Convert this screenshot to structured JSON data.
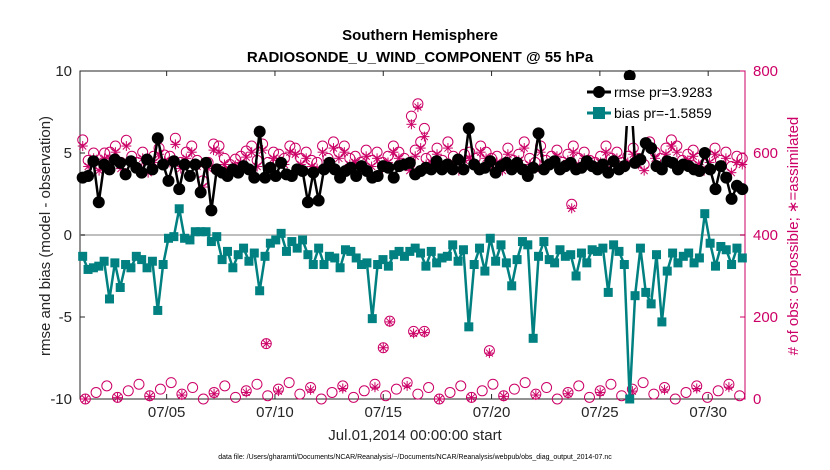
{
  "chart_data": {
    "type": "line",
    "title": "Southern Hemisphere",
    "subtitle": "RADIOSONDE_U_WIND_COMPONENT @ 55 hPa",
    "xlabel": "Jul.01,2014 00:00:00 start",
    "ylabel": "rmse and bias (model - observation)",
    "y2label": "# of obs: o=possible; ∗=assimilated",
    "xlim": [
      1,
      31.7
    ],
    "ylim": [
      -10,
      10
    ],
    "y2lim": [
      0,
      800
    ],
    "x_ticks": [
      5,
      10,
      15,
      20,
      25,
      30
    ],
    "x_tick_labels": [
      "07/05",
      "07/10",
      "07/15",
      "07/20",
      "07/25",
      "07/30"
    ],
    "y_ticks": [
      -10,
      -5,
      0,
      5,
      10
    ],
    "y_tick_labels": [
      "-10",
      "-5",
      "0",
      "5",
      "10"
    ],
    "y2_ticks": [
      0,
      200,
      400,
      600,
      800
    ],
    "y2_tick_labels": [
      "0",
      "200",
      "400",
      "600",
      "800"
    ],
    "zero_line": 0,
    "colors": {
      "rmse": "#000000",
      "bias": "#008080",
      "obs": "#cc0066",
      "zero": "#bfbfbf"
    },
    "legend_position": "top-right",
    "series": [
      {
        "name": "rmse pr=3.9283",
        "axis": "left",
        "values": [
          3.5,
          3.6,
          4.5,
          2.0,
          4.3,
          4.0,
          4.6,
          4.4,
          3.7,
          4.5,
          4.1,
          3.8,
          4.6,
          4.0,
          5.9,
          4.3,
          3.3,
          4.5,
          2.8,
          4.3,
          3.6,
          4.3,
          2.6,
          4.4,
          1.5,
          4.0,
          3.8,
          3.6,
          4.0,
          3.8,
          4.2,
          4.0,
          3.5,
          6.3,
          3.5,
          4.1,
          3.6,
          4.4,
          3.7,
          3.6,
          4.0,
          3.9,
          2.0,
          3.8,
          2.1,
          4.0,
          4.4,
          4.0,
          3.5,
          3.9,
          4.1,
          3.6,
          4.2,
          3.9,
          3.5,
          3.6,
          4.2,
          4.1,
          3.5,
          4.2,
          4.3,
          4.4,
          3.7,
          3.9,
          4.1,
          4.0,
          4.5,
          4.0,
          4.3,
          4.0,
          4.6,
          4.0,
          6.5,
          4.3,
          4.0,
          4.1,
          4.5,
          3.8,
          4.2,
          4.4,
          4.0,
          4.4,
          4.0,
          3.6,
          4.1,
          6.2,
          4.0,
          4.3,
          4.5,
          4.0,
          4.2,
          4.4,
          4.0,
          4.1,
          4.5,
          4.2,
          4.0,
          4.3,
          3.8,
          4.5,
          4.0,
          4.2,
          9.7,
          4.4,
          4.6,
          5.6,
          5.3,
          4.2,
          4.0,
          4.5,
          4.4,
          4.0,
          4.3,
          4.2,
          4.0,
          3.9,
          5.0,
          4.0,
          2.8,
          4.2,
          3.5,
          2.2,
          3.0,
          2.8
        ],
        "marker": "filled-circle"
      },
      {
        "name": "bias pr=-1.5859",
        "axis": "left",
        "values": [
          -1.3,
          -2.1,
          -2.0,
          -1.9,
          -1.6,
          -3.9,
          -1.7,
          -3.2,
          -1.8,
          -2.0,
          -1.3,
          -1.5,
          -2.0,
          -1.6,
          -4.6,
          -1.8,
          -0.2,
          -0.1,
          1.6,
          -0.2,
          -0.3,
          0.2,
          0.2,
          0.2,
          -0.4,
          -0.1,
          -1.5,
          -1.0,
          -2.0,
          -1.2,
          -0.8,
          -1.6,
          -1.1,
          -3.4,
          -1.3,
          -0.5,
          -0.3,
          0.1,
          -1.0,
          -0.4,
          -0.8,
          -0.3,
          -1.2,
          -1.8,
          -0.8,
          -1.8,
          -1.3,
          -1.4,
          -2.0,
          -0.9,
          -1.0,
          -1.4,
          -1.8,
          -1.7,
          -5.1,
          -1.8,
          -1.5,
          -1.9,
          -1.2,
          -1.0,
          -1.3,
          -1.0,
          -0.8,
          -1.1,
          -1.9,
          -1.0,
          -1.7,
          -1.4,
          -1.3,
          -0.6,
          -1.6,
          -0.9,
          -5.6,
          -1.8,
          -0.8,
          -2.2,
          -0.2,
          -1.6,
          -0.6,
          -1.7,
          -3.1,
          -1.5,
          -0.4,
          -0.6,
          -6.3,
          -1.3,
          -0.4,
          -1.5,
          -1.7,
          -0.9,
          -1.3,
          -1.2,
          -2.5,
          -1.1,
          -1.7,
          -0.9,
          -1.0,
          -0.8,
          -3.5,
          -0.6,
          -1.0,
          -1.8,
          -10.0,
          -3.7,
          -0.8,
          -3.5,
          -4.2,
          -1.2,
          -5.3,
          -2.2,
          -1.1,
          -1.7,
          -1.3,
          -1.1,
          -1.7,
          -1.4,
          1.3,
          -0.5,
          -1.9,
          -0.7,
          -0.9,
          -1.8,
          -0.8,
          -1.4
        ],
        "marker": "filled-square"
      },
      {
        "name": "possible",
        "axis": "right",
        "marker": "open-circle",
        "values": [
          632,
          582,
          600,
          572,
          600,
          602,
          617,
          577,
          631,
          592,
          577,
          602,
          567,
          592,
          612,
          595,
          592,
          636,
          577,
          602,
          617,
          582,
          532,
          577,
          622,
          617,
          587,
          572,
          585,
          592,
          605,
          617,
          582,
          622,
          577,
          602,
          597,
          587,
          617,
          612,
          587,
          602,
          582,
          577,
          617,
          587,
          627,
          602,
          617,
          587,
          592,
          577,
          607,
          582,
          602,
          577,
          592,
          617,
          602,
          587,
          572,
          607,
          627,
          587,
          592,
          612,
          582,
          627,
          592,
          572,
          597,
          602,
          587,
          617,
          602,
          587,
          592,
          572,
          612,
          582,
          597,
          627,
          587,
          577,
          617,
          582,
          592,
          607,
          577,
          597,
          617,
          587,
          602,
          582,
          577,
          592,
          617,
          587,
          602,
          577,
          592,
          612,
          587,
          572,
          627,
          602,
          587,
          612,
          632,
          617,
          582,
          597,
          607,
          587,
          572,
          592,
          612,
          582,
          602,
          567,
          592,
          587
        ]
      },
      {
        "name": "assimilated",
        "axis": "right",
        "marker": "asterisk",
        "values": [
          617,
          567,
          587,
          557,
          587,
          587,
          602,
          562,
          617,
          577,
          562,
          587,
          552,
          577,
          597,
          580,
          577,
          621,
          562,
          587,
          602,
          567,
          517,
          562,
          607,
          602,
          572,
          557,
          570,
          577,
          590,
          602,
          567,
          607,
          562,
          587,
          582,
          572,
          602,
          597,
          572,
          587,
          567,
          562,
          602,
          572,
          612,
          587,
          602,
          572,
          577,
          562,
          592,
          567,
          587,
          562,
          577,
          602,
          587,
          572,
          557,
          592,
          612,
          572,
          577,
          597,
          567,
          612,
          577,
          557,
          582,
          587,
          572,
          602,
          587,
          572,
          577,
          557,
          597,
          567,
          582,
          612,
          572,
          562,
          602,
          567,
          577,
          592,
          562,
          582,
          602,
          572,
          587,
          567,
          562,
          577,
          602,
          572,
          587,
          562,
          577,
          597,
          572,
          557,
          612,
          587,
          572,
          597,
          617,
          602,
          567,
          582,
          592,
          572,
          557,
          577,
          597,
          567,
          587,
          552,
          577,
          572
        ]
      }
    ],
    "obs_outliers": [
      {
        "x": 9.6,
        "possible": 135,
        "assimilated": 135
      },
      {
        "x": 15.0,
        "possible": 125,
        "assimilated": 125
      },
      {
        "x": 15.3,
        "possible": 190,
        "assimilated": 188
      },
      {
        "x": 16.4,
        "possible": 165,
        "assimilated": 160
      },
      {
        "x": 16.9,
        "possible": 165,
        "assimilated": 162
      },
      {
        "x": 19.9,
        "possible": 118,
        "assimilated": 112
      },
      {
        "x": 23.7,
        "possible": 475,
        "assimilated": 465
      },
      {
        "x": 16.3,
        "possible": 690,
        "assimilated": 670
      },
      {
        "x": 16.6,
        "possible": 720,
        "assimilated": 712
      },
      {
        "x": 16.9,
        "possible": 660,
        "assimilated": 640
      }
    ],
    "obs_bottom_count": 62,
    "obs_bottom_range": [
      0,
      40
    ]
  },
  "footnote": "data file: /Users/gharamti/Documents/NCAR/Reanalysis/~/Documents/NCAR/Reanalysis/webpub/obs_diag_output_2014-07.nc"
}
